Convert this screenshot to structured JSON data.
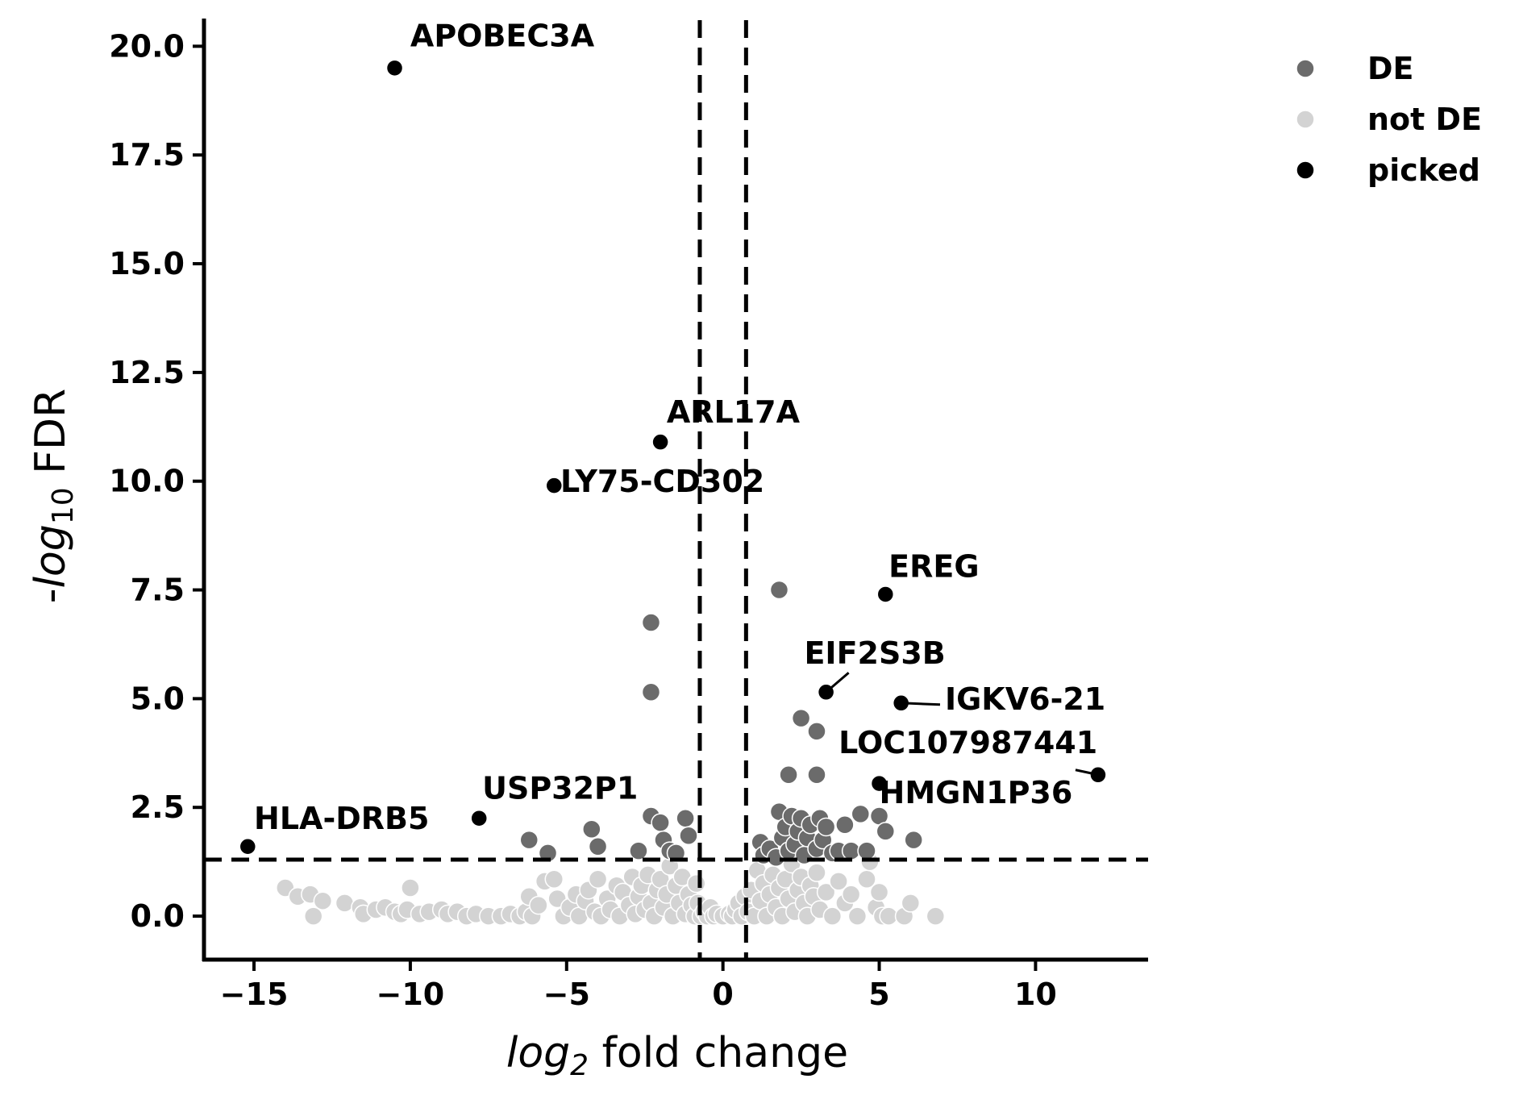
{
  "chart_data": {
    "type": "scatter",
    "title": "",
    "xlabel_var": "log",
    "xlabel_sub": "2",
    "xlabel_rest": " fold change",
    "ylabel_pre": "-",
    "ylabel_var": "log",
    "ylabel_sub": "10",
    "ylabel_rest": " FDR",
    "xlim": [
      -16.6,
      13.6
    ],
    "ylim": [
      -1.0,
      20.6
    ],
    "xticks": [
      -15,
      -10,
      -5,
      0,
      5,
      10
    ],
    "xtick_labels": [
      "−15",
      "−10",
      "−5",
      "0",
      "5",
      "10"
    ],
    "yticks": [
      0,
      2.5,
      5,
      7.5,
      10,
      12.5,
      15,
      17.5,
      20
    ],
    "ytick_labels": [
      "0.0",
      "2.5",
      "5.0",
      "7.5",
      "10.0",
      "12.5",
      "15.0",
      "17.5",
      "20.0"
    ],
    "thresholds": {
      "fc_low": -0.74,
      "fc_high": 0.74,
      "neg_log_fdr": 1.3
    },
    "legend_position": "top-right",
    "colors": {
      "de": "#6b6b6b",
      "not_de": "#d3d3d3",
      "picked": "#000000"
    },
    "legend": [
      {
        "key": "de",
        "label": "DE"
      },
      {
        "key": "not_de",
        "label": "not DE"
      },
      {
        "key": "picked",
        "label": "picked"
      }
    ],
    "series": [
      {
        "key": "not_de",
        "name": "not DE",
        "points": [
          [
            -14.0,
            0.65
          ],
          [
            -13.6,
            0.45
          ],
          [
            -13.2,
            0.5
          ],
          [
            -13.1,
            0.0
          ],
          [
            -12.8,
            0.35
          ],
          [
            -12.1,
            0.3
          ],
          [
            -11.6,
            0.2
          ],
          [
            -11.5,
            0.05
          ],
          [
            -11.1,
            0.15
          ],
          [
            -10.8,
            0.2
          ],
          [
            -10.5,
            0.1
          ],
          [
            -10.3,
            0.05
          ],
          [
            -10.1,
            0.15
          ],
          [
            -10.0,
            0.65
          ],
          [
            -9.7,
            0.05
          ],
          [
            -9.4,
            0.1
          ],
          [
            -9.0,
            0.15
          ],
          [
            -8.8,
            0.05
          ],
          [
            -8.5,
            0.1
          ],
          [
            -8.2,
            0.0
          ],
          [
            -7.9,
            0.05
          ],
          [
            -7.5,
            0.0
          ],
          [
            -7.1,
            0.0
          ],
          [
            -6.8,
            0.05
          ],
          [
            -6.5,
            0.0
          ],
          [
            -6.3,
            0.1
          ],
          [
            -6.1,
            0.0
          ],
          [
            -6.2,
            0.45
          ],
          [
            -5.9,
            0.25
          ],
          [
            -5.7,
            0.8
          ],
          [
            -5.4,
            0.85
          ],
          [
            -5.3,
            0.4
          ],
          [
            -5.1,
            0.0
          ],
          [
            -4.9,
            0.2
          ],
          [
            -4.7,
            0.5
          ],
          [
            -4.6,
            0.0
          ],
          [
            -4.4,
            0.35
          ],
          [
            -4.3,
            0.6
          ],
          [
            -4.1,
            0.1
          ],
          [
            -4.0,
            0.85
          ],
          [
            -3.9,
            0.0
          ],
          [
            -3.7,
            0.4
          ],
          [
            -3.6,
            0.15
          ],
          [
            -3.4,
            0.7
          ],
          [
            -3.3,
            0.0
          ],
          [
            -3.2,
            0.55
          ],
          [
            -3.0,
            0.25
          ],
          [
            -2.9,
            0.9
          ],
          [
            -2.8,
            0.05
          ],
          [
            -2.7,
            0.45
          ],
          [
            -2.6,
            0.7
          ],
          [
            -2.5,
            0.15
          ],
          [
            -2.4,
            0.95
          ],
          [
            -2.3,
            0.3
          ],
          [
            -2.2,
            0.0
          ],
          [
            -2.1,
            0.6
          ],
          [
            -2.0,
            0.85
          ],
          [
            -1.9,
            0.2
          ],
          [
            -1.8,
            0.5
          ],
          [
            -1.7,
            1.15
          ],
          [
            -1.6,
            0.0
          ],
          [
            -1.5,
            0.7
          ],
          [
            -1.4,
            0.3
          ],
          [
            -1.3,
            0.9
          ],
          [
            -1.2,
            0.05
          ],
          [
            -1.1,
            0.5
          ],
          [
            -1.0,
            0.25
          ],
          [
            -0.9,
            0.0
          ],
          [
            -0.85,
            0.75
          ],
          [
            -0.8,
            0.3
          ],
          [
            -0.7,
            0.0
          ],
          [
            -0.6,
            0.1
          ],
          [
            -0.5,
            0.0
          ],
          [
            -0.4,
            0.2
          ],
          [
            -0.3,
            0.0
          ],
          [
            -0.2,
            0.05
          ],
          [
            0.0,
            0.0
          ],
          [
            0.2,
            0.05
          ],
          [
            0.3,
            0.0
          ],
          [
            0.4,
            0.15
          ],
          [
            0.5,
            0.3
          ],
          [
            0.6,
            0.0
          ],
          [
            0.7,
            0.45
          ],
          [
            0.8,
            0.1
          ],
          [
            0.9,
            0.6
          ],
          [
            1.0,
            0.0
          ],
          [
            1.1,
            1.05
          ],
          [
            1.2,
            0.35
          ],
          [
            1.3,
            0.75
          ],
          [
            1.4,
            0.0
          ],
          [
            1.5,
            0.5
          ],
          [
            1.6,
            0.95
          ],
          [
            1.7,
            0.2
          ],
          [
            1.8,
            0.65
          ],
          [
            1.9,
            0.0
          ],
          [
            2.0,
            0.85
          ],
          [
            2.1,
            0.4
          ],
          [
            2.2,
            1.2
          ],
          [
            2.3,
            0.1
          ],
          [
            2.4,
            0.6
          ],
          [
            2.5,
            0.9
          ],
          [
            2.6,
            0.3
          ],
          [
            2.7,
            0.0
          ],
          [
            2.8,
            0.7
          ],
          [
            2.9,
            0.45
          ],
          [
            3.0,
            1.0
          ],
          [
            3.1,
            0.15
          ],
          [
            3.3,
            0.55
          ],
          [
            3.5,
            0.0
          ],
          [
            3.7,
            0.8
          ],
          [
            3.9,
            0.3
          ],
          [
            4.1,
            0.5
          ],
          [
            4.3,
            0.0
          ],
          [
            4.6,
            0.85
          ],
          [
            4.7,
            1.25
          ],
          [
            4.9,
            0.2
          ],
          [
            5.0,
            0.55
          ],
          [
            5.1,
            0.0
          ],
          [
            5.3,
            0.0
          ],
          [
            5.8,
            0.0
          ],
          [
            6.0,
            0.3
          ],
          [
            6.8,
            0.0
          ]
        ]
      },
      {
        "key": "de",
        "name": "DE",
        "points": [
          [
            -6.2,
            1.75
          ],
          [
            -5.6,
            1.45
          ],
          [
            -4.2,
            2.0
          ],
          [
            -4.0,
            1.6
          ],
          [
            -2.7,
            1.5
          ],
          [
            -2.3,
            2.3
          ],
          [
            -2.0,
            2.15
          ],
          [
            -1.9,
            1.75
          ],
          [
            -1.7,
            1.5
          ],
          [
            -1.5,
            1.45
          ],
          [
            -1.2,
            2.25
          ],
          [
            -1.1,
            1.85
          ],
          [
            -2.3,
            6.75
          ],
          [
            -2.3,
            5.15
          ],
          [
            1.2,
            1.7
          ],
          [
            1.3,
            1.4
          ],
          [
            1.5,
            1.55
          ],
          [
            1.7,
            1.35
          ],
          [
            1.8,
            2.4
          ],
          [
            1.9,
            1.8
          ],
          [
            2.0,
            2.05
          ],
          [
            2.1,
            1.5
          ],
          [
            2.2,
            2.3
          ],
          [
            2.3,
            1.65
          ],
          [
            2.4,
            1.95
          ],
          [
            2.5,
            2.25
          ],
          [
            2.6,
            1.4
          ],
          [
            2.7,
            1.8
          ],
          [
            2.8,
            2.1
          ],
          [
            3.0,
            1.55
          ],
          [
            3.1,
            2.25
          ],
          [
            3.2,
            1.75
          ],
          [
            3.3,
            2.05
          ],
          [
            3.5,
            1.45
          ],
          [
            3.7,
            1.5
          ],
          [
            3.9,
            2.1
          ],
          [
            4.1,
            1.5
          ],
          [
            4.4,
            2.35
          ],
          [
            4.6,
            1.5
          ],
          [
            5.0,
            2.3
          ],
          [
            5.2,
            1.95
          ],
          [
            6.1,
            1.75
          ],
          [
            1.8,
            7.5
          ],
          [
            2.5,
            4.55
          ],
          [
            3.0,
            4.25
          ],
          [
            2.1,
            3.25
          ],
          [
            3.0,
            3.25
          ]
        ]
      },
      {
        "key": "picked",
        "name": "picked",
        "points": [
          [
            -10.5,
            19.5
          ],
          [
            -2.0,
            10.9
          ],
          [
            -5.4,
            9.9
          ],
          [
            5.2,
            7.4
          ],
          [
            3.3,
            5.15
          ],
          [
            5.7,
            4.9
          ],
          [
            12.0,
            3.25
          ],
          [
            5.0,
            3.05
          ],
          [
            -7.8,
            2.25
          ],
          [
            -15.2,
            1.6
          ]
        ]
      }
    ],
    "annotations": [
      {
        "label": "APOBEC3A",
        "x": -10.5,
        "y": 19.5,
        "tx": -10.0,
        "ty": 20.0,
        "line": false
      },
      {
        "label": "ARL17A",
        "x": -2.0,
        "y": 10.9,
        "tx": -1.8,
        "ty": 11.35,
        "line": false
      },
      {
        "label": "LY75-CD302",
        "x": -5.4,
        "y": 9.9,
        "tx": -5.2,
        "ty": 9.75,
        "line": false
      },
      {
        "label": "EREG",
        "x": 5.2,
        "y": 7.4,
        "tx": 5.3,
        "ty": 7.8,
        "line": false
      },
      {
        "label": "EIF2S3B",
        "x": 3.3,
        "y": 5.15,
        "tx": 2.6,
        "ty": 5.8,
        "line": true
      },
      {
        "label": "IGKV6-21",
        "x": 5.7,
        "y": 4.9,
        "tx": 7.1,
        "ty": 4.75,
        "line": true
      },
      {
        "label": "LOC107987441",
        "x": 12.0,
        "y": 3.25,
        "tx": 3.7,
        "ty": 3.75,
        "line": true
      },
      {
        "label": "HMGN1P36",
        "x": 5.0,
        "y": 3.05,
        "tx": 5.0,
        "ty": 2.6,
        "line": false
      },
      {
        "label": "USP32P1",
        "x": -7.8,
        "y": 2.25,
        "tx": -7.7,
        "ty": 2.7,
        "line": false
      },
      {
        "label": "HLA-DRB5",
        "x": -15.2,
        "y": 1.6,
        "tx": -15.0,
        "ty": 2.0,
        "line": false
      }
    ]
  }
}
